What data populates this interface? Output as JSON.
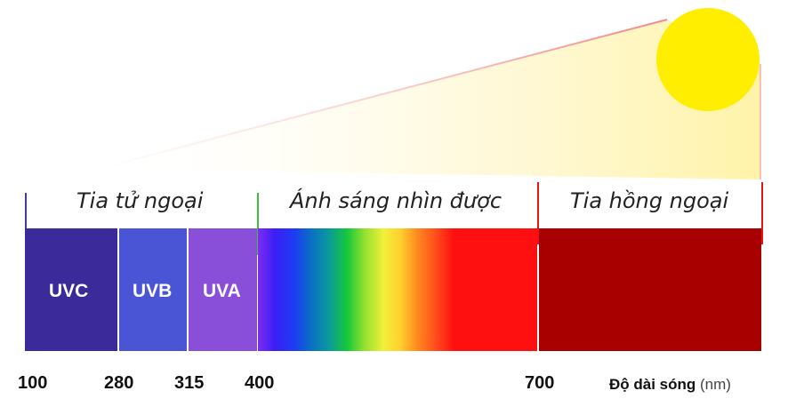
{
  "regions": {
    "uv": "Tia tử ngoại",
    "visible": "Ánh sáng nhìn được",
    "infrared": "Tia hồng ngoại"
  },
  "uv_bands": {
    "uvc": "UVC",
    "uvb": "UVB",
    "uva": "UVA"
  },
  "axis": {
    "ticks": [
      "100",
      "280",
      "315",
      "400",
      "700"
    ],
    "title": "Độ dài sóng",
    "unit": "(nm)"
  },
  "colors": {
    "uvc": "#3a2a9a",
    "uvb": "#4a55d6",
    "uva": "#8a4fd8",
    "infrared": "#a80000",
    "sun": "#ffee00",
    "visible_gradient": [
      "#7f2cf0",
      "#3b1ef5",
      "#1d3cf2",
      "#0a6ec4",
      "#0a97a0",
      "#16c83a",
      "#8fe030",
      "#f2f03a",
      "#ffd02e",
      "#ff8a1e",
      "#ff4a1a",
      "#ff1010"
    ]
  }
}
